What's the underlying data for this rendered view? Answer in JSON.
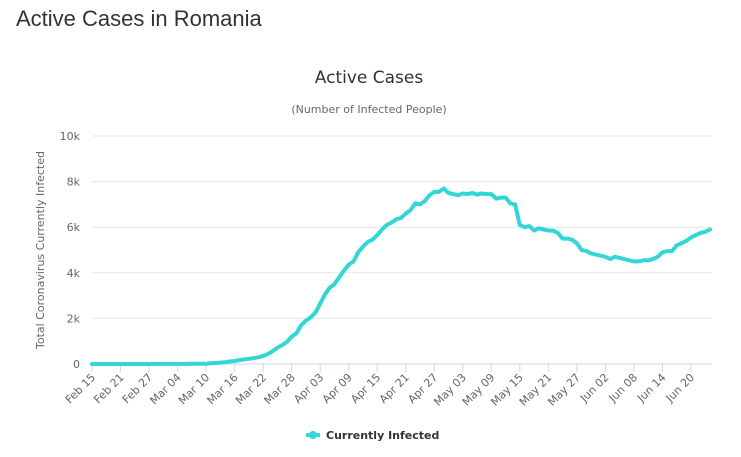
{
  "page_title": "Active Cases in Romania",
  "chart_data": {
    "type": "line",
    "title": "Active Cases",
    "subtitle": "(Number of Infected People)",
    "y_label": "Total Coronavirus Currently Infected",
    "categories": [
      "Feb 15",
      null,
      null,
      null,
      null,
      null,
      "Feb 21",
      null,
      null,
      null,
      null,
      null,
      "Feb 27",
      null,
      null,
      null,
      null,
      null,
      "Mar 04",
      null,
      null,
      null,
      null,
      null,
      "Mar 10",
      null,
      null,
      null,
      null,
      null,
      "Mar 16",
      null,
      null,
      null,
      null,
      null,
      "Mar 22",
      null,
      null,
      null,
      null,
      null,
      "Mar 28",
      null,
      null,
      null,
      null,
      null,
      "Apr 03",
      null,
      null,
      null,
      null,
      null,
      "Apr 09",
      null,
      null,
      null,
      null,
      null,
      "Apr 15",
      null,
      null,
      null,
      null,
      null,
      "Apr 21",
      null,
      null,
      null,
      null,
      null,
      "Apr 27",
      null,
      null,
      null,
      null,
      null,
      "May 03",
      null,
      null,
      null,
      null,
      null,
      "May 09",
      null,
      null,
      null,
      null,
      null,
      "May 15",
      null,
      null,
      null,
      null,
      null,
      "May 21",
      null,
      null,
      null,
      null,
      null,
      "May 27",
      null,
      null,
      null,
      null,
      null,
      "Jun 02",
      null,
      null,
      null,
      null,
      null,
      "Jun 08",
      null,
      null,
      null,
      null,
      null,
      "Jun 14",
      null,
      null,
      null,
      null,
      null,
      "Jun 20",
      null,
      null,
      null,
      null
    ],
    "series": [
      {
        "name": "Currently Infected",
        "color": "#33d6d6",
        "values": [
          0,
          0,
          0,
          0,
          0,
          0,
          0,
          0,
          0,
          0,
          0,
          1,
          1,
          3,
          3,
          3,
          3,
          3,
          4,
          4,
          6,
          9,
          12,
          15,
          15,
          29,
          45,
          62,
          80,
          110,
          130,
          170,
          200,
          230,
          260,
          300,
          350,
          440,
          560,
          720,
          830,
          970,
          1200,
          1350,
          1700,
          1900,
          2050,
          2250,
          2650,
          3050,
          3350,
          3500,
          3800,
          4100,
          4350,
          4500,
          4900,
          5150,
          5350,
          5450,
          5650,
          5900,
          6100,
          6200,
          6350,
          6400,
          6600,
          6750,
          7050,
          7000,
          7150,
          7400,
          7550,
          7550,
          7700,
          7500,
          7450,
          7400,
          7480,
          7450,
          7500,
          7430,
          7480,
          7450,
          7450,
          7250,
          7300,
          7300,
          7050,
          7000,
          6100,
          6000,
          6050,
          5850,
          5950,
          5900,
          5850,
          5850,
          5750,
          5500,
          5500,
          5450,
          5300,
          5000,
          4950,
          4850,
          4800,
          4750,
          4700,
          4600,
          4700,
          4650,
          4600,
          4550,
          4500,
          4500,
          4550,
          4550,
          4600,
          4700,
          4900,
          4950,
          4950,
          5200,
          5300,
          5400,
          5550,
          5650,
          5750,
          5800,
          5900
        ]
      }
    ],
    "ylim": [
      0,
      10000
    ],
    "yticks": [
      0,
      {
        "value": 2000,
        "label": "2k"
      },
      {
        "value": 4000,
        "label": "4k"
      },
      {
        "value": 6000,
        "label": "6k"
      },
      {
        "value": 8000,
        "label": "8k"
      },
      {
        "value": 10000,
        "label": "10k"
      }
    ],
    "grid": true
  }
}
